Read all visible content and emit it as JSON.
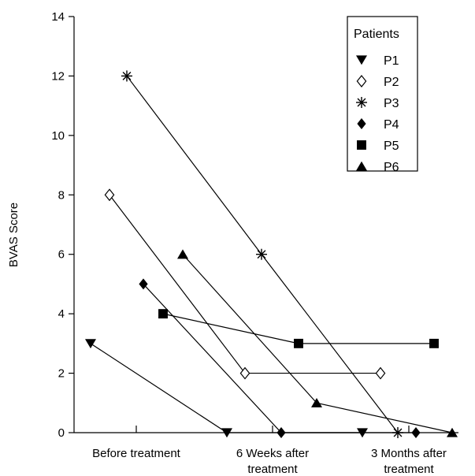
{
  "chart_data": {
    "type": "line",
    "title": "",
    "xlabel": "",
    "ylabel": "BVAS Score",
    "ylim": [
      0,
      14
    ],
    "yticks": [
      "0",
      "2",
      "4",
      "6",
      "8",
      "10",
      "12",
      "14"
    ],
    "categories": [
      [
        "Before treatment"
      ],
      [
        "6 Weeks after",
        "treatment"
      ],
      [
        "3 Months after",
        "treatment"
      ]
    ],
    "legend": {
      "title": "Patients",
      "position": "top-right"
    },
    "series": [
      {
        "name": "P1",
        "marker": "triangle-down",
        "values": [
          3,
          0,
          0
        ]
      },
      {
        "name": "P2",
        "marker": "diamond-open",
        "values": [
          8,
          2,
          2
        ]
      },
      {
        "name": "P3",
        "marker": "asterisk",
        "values": [
          12,
          6,
          0
        ]
      },
      {
        "name": "P4",
        "marker": "diamond",
        "values": [
          5,
          0,
          0
        ]
      },
      {
        "name": "P5",
        "marker": "square",
        "values": [
          4,
          3,
          3
        ]
      },
      {
        "name": "P6",
        "marker": "triangle-up",
        "values": [
          6,
          1,
          0
        ]
      }
    ],
    "grid": false
  }
}
